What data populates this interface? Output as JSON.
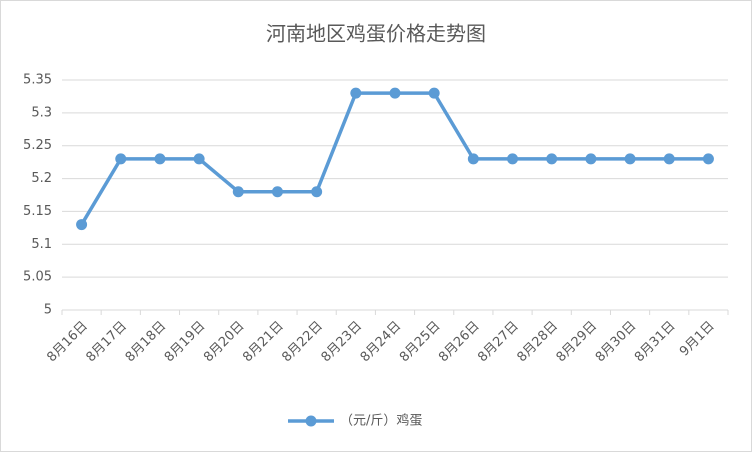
{
  "chart_data": {
    "type": "line",
    "title": "河南地区鸡蛋价格走势图",
    "categories": [
      "8月16日",
      "8月17日",
      "8月18日",
      "8月19日",
      "8月20日",
      "8月21日",
      "8月22日",
      "8月23日",
      "8月24日",
      "8月25日",
      "8月26日",
      "8月27日",
      "8月28日",
      "8月29日",
      "8月30日",
      "8月31日",
      "9月1日"
    ],
    "series": [
      {
        "name": "（元/斤）鸡蛋",
        "color": "#5b9bd5",
        "values": [
          5.13,
          5.23,
          5.23,
          5.23,
          5.18,
          5.18,
          5.18,
          5.33,
          5.33,
          5.33,
          5.23,
          5.23,
          5.23,
          5.23,
          5.23,
          5.23,
          5.23
        ]
      }
    ],
    "ylim": [
      5,
      5.35
    ],
    "yticks": [
      5,
      5.05,
      5.1,
      5.15,
      5.2,
      5.25,
      5.3,
      5.35
    ],
    "grid": true,
    "legend": "bottom"
  }
}
